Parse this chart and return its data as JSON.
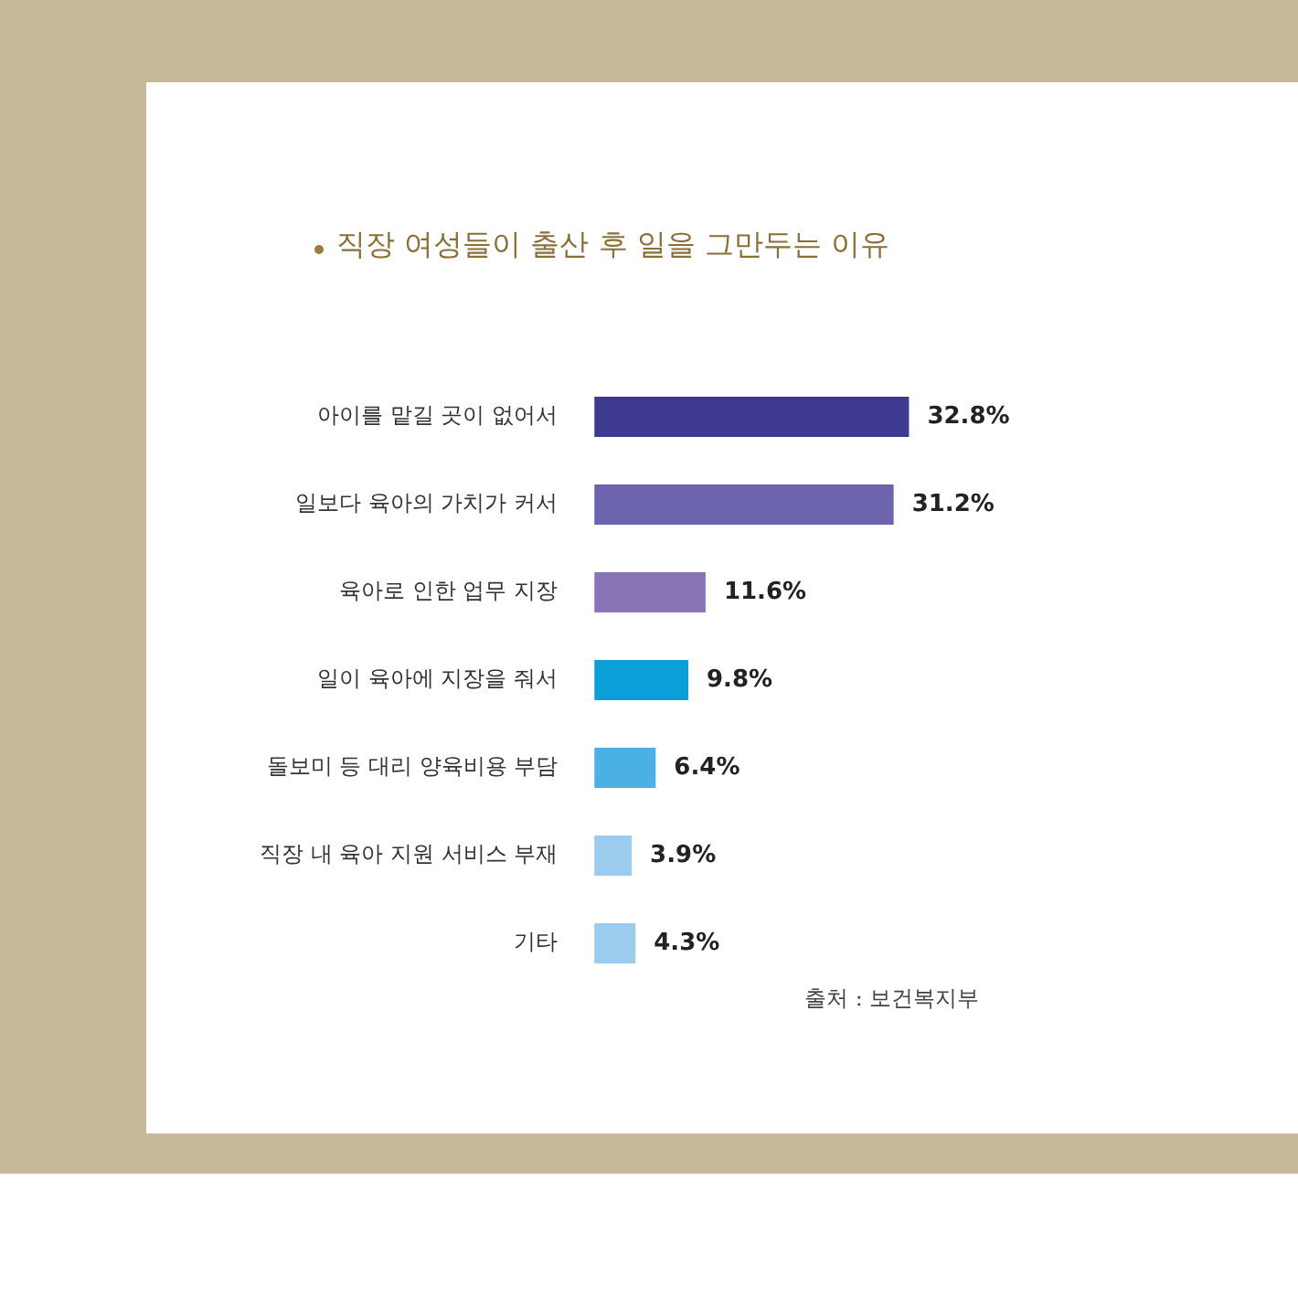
{
  "chart_data": {
    "type": "bar",
    "orientation": "horizontal",
    "title": "직장 여성들이 출산 후 일을 그만두는 이유",
    "categories": [
      "아이를 맡길 곳이 없어서",
      "일보다 육아의 가치가 커서",
      "육아로 인한 업무 지장",
      "일이 육아에 지장을 줘서",
      "돌보미 등 대리 양육비용 부담",
      "직장 내 육아 지원 서비스 부재",
      "기타"
    ],
    "values": [
      32.8,
      31.2,
      11.6,
      9.8,
      6.4,
      3.9,
      4.3
    ],
    "value_labels": [
      "32.8%",
      "31.2%",
      "11.6%",
      "9.8%",
      "6.4%",
      "3.9%",
      "4.3%"
    ],
    "colors": [
      "#3d3a8f",
      "#6d64ae",
      "#8a74b8",
      "#0a9fd8",
      "#4bb0e3",
      "#9ccbee",
      "#9ccbee"
    ],
    "annotations": [
      "출처 : 보건복지부"
    ],
    "legend": false
  }
}
